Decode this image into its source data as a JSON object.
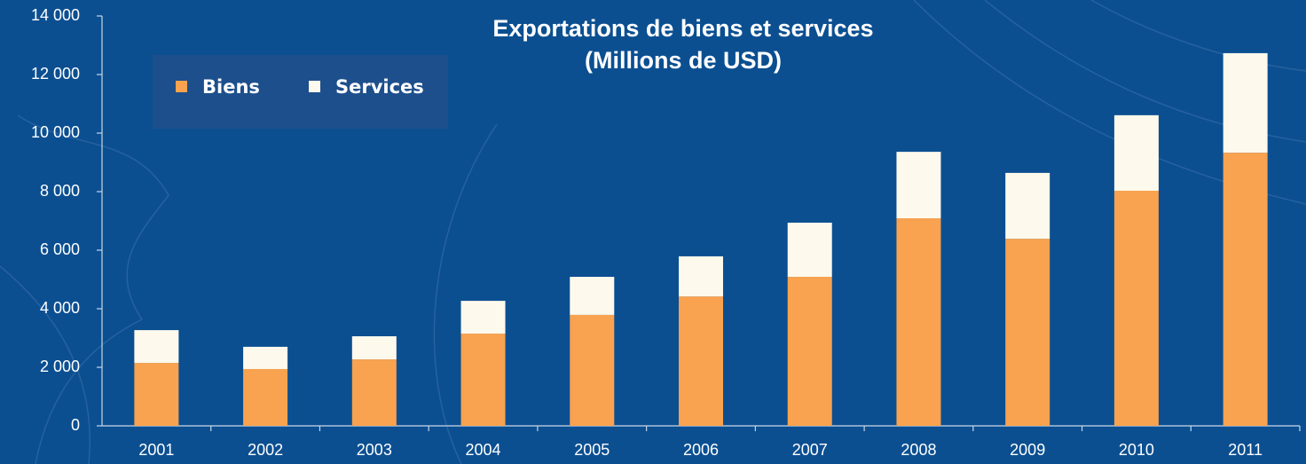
{
  "chart_data": {
    "type": "stacked_bar",
    "title": "Exportations de biens et services",
    "subtitle": "(Millions de USD)",
    "categories": [
      "2001",
      "2002",
      "2003",
      "2004",
      "2005",
      "2006",
      "2007",
      "2008",
      "2009",
      "2010",
      "2011"
    ],
    "series": [
      {
        "name": "Biens",
        "color": "#f9a24f",
        "values": [
          2150,
          1940,
          2270,
          3150,
          3790,
          4420,
          5090,
          7090,
          6390,
          8030,
          9330
        ]
      },
      {
        "name": "Services",
        "color": "#fdf9ec",
        "values": [
          1120,
          760,
          790,
          1120,
          1300,
          1370,
          1850,
          2270,
          2250,
          2580,
          3400
        ]
      }
    ],
    "ylim": [
      0,
      14000
    ],
    "yticks": [
      0,
      {
        "value": 2000,
        "label": "2 000"
      },
      {
        "value": 4000,
        "label": "4 000"
      },
      {
        "value": 6000,
        "label": "6 000"
      },
      {
        "value": 8000,
        "label": "8 000"
      },
      {
        "value": 10000,
        "label": "10 000"
      },
      {
        "value": 12000,
        "label": "12 000"
      },
      {
        "value": 14000,
        "label": "14 000"
      }
    ]
  }
}
